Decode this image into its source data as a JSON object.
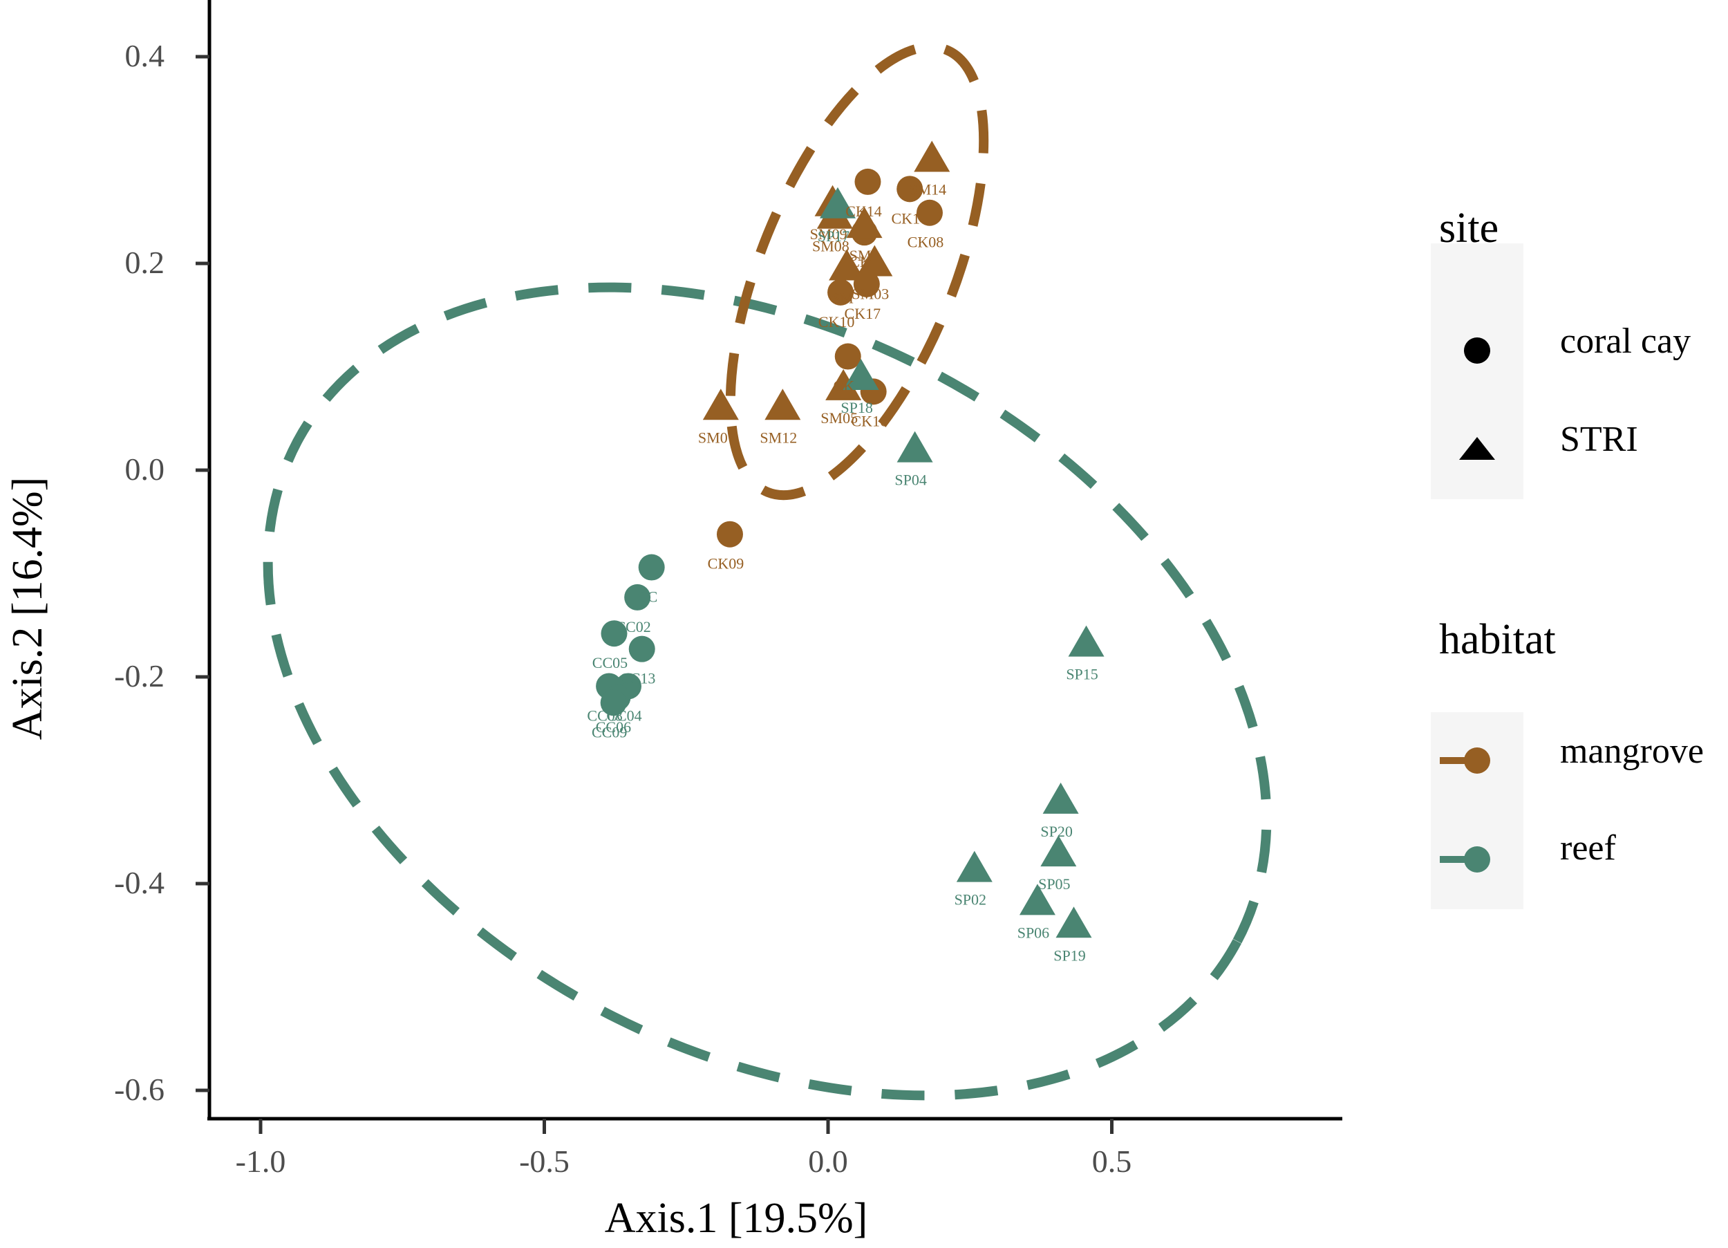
{
  "colors": {
    "mangrove": "#965F23",
    "reef": "#4A8572",
    "axis": "#000000",
    "tick_text": "#4d4d4d",
    "legend_key_bg": "#f5f5f5"
  },
  "axes": {
    "x_title": "Axis.1   [19.5%]",
    "y_title": "Axis.2   [16.4%]",
    "x_ticks": [
      "-1.0",
      "-0.5",
      "0.0",
      "0.5"
    ],
    "y_ticks": [
      "0.4",
      "0.2",
      "0.0",
      "-0.2",
      "-0.4",
      "-0.6"
    ]
  },
  "legend": {
    "site": {
      "title": "site",
      "items": [
        {
          "label": "coral cay",
          "shape": "circle"
        },
        {
          "label": "STRI",
          "shape": "triangle"
        }
      ]
    },
    "habitat": {
      "title": "habitat",
      "items": [
        {
          "label": "mangrove",
          "color": "#965F23"
        },
        {
          "label": "reef",
          "color": "#4A8572"
        }
      ]
    }
  },
  "chart_data": {
    "type": "scatter",
    "title": "",
    "xlabel": "Axis.1   [19.5%]",
    "ylabel": "Axis.2   [16.4%]",
    "xlim": [
      -1.05,
      0.89
    ],
    "ylim": [
      -0.64,
      0.45
    ],
    "x_ticks": [
      -1.0,
      -0.5,
      0.0,
      0.5
    ],
    "y_ticks": [
      -0.6,
      -0.4,
      -0.2,
      0.0,
      0.2,
      0.4
    ],
    "grid": false,
    "legend_position": "right",
    "ellipses": [
      {
        "group": "mangrove",
        "style": "dashed",
        "center": [
          0.05,
          0.19
        ],
        "approx_extent_x": [
          -0.16,
          0.26
        ],
        "approx_extent_y": [
          -0.02,
          0.4
        ]
      },
      {
        "group": "reef",
        "style": "dashed",
        "center": [
          -0.1,
          -0.2
        ],
        "approx_extent_x": [
          -1.0,
          0.82
        ],
        "approx_extent_y": [
          -0.58,
          0.17
        ]
      }
    ],
    "series": [
      {
        "name": "mangrove / coral cay",
        "habitat": "mangrove",
        "site": "coral cay",
        "shape": "circle",
        "points": [
          {
            "label": "CK14",
            "x": 0.07,
            "y": 0.279
          },
          {
            "label": "CK1?",
            "x": 0.144,
            "y": 0.272
          },
          {
            "label": "CK08",
            "x": 0.179,
            "y": 0.249
          },
          {
            "label": "CK?",
            "x": 0.064,
            "y": 0.23
          },
          {
            "label": "CK10",
            "x": 0.022,
            "y": 0.172
          },
          {
            "label": "CK17",
            "x": 0.068,
            "y": 0.18
          },
          {
            "label": "CK?",
            "x": 0.035,
            "y": 0.11
          },
          {
            "label": "CK16",
            "x": 0.08,
            "y": 0.076
          },
          {
            "label": "CK09",
            "x": -0.173,
            "y": -0.062
          }
        ]
      },
      {
        "name": "mangrove / STRI",
        "habitat": "mangrove",
        "site": "STRI",
        "shape": "triangle",
        "points": [
          {
            "label": "SM14",
            "x": 0.183,
            "y": 0.3
          },
          {
            "label": "SM09",
            "x": 0.008,
            "y": 0.257
          },
          {
            "label": "SM08",
            "x": 0.012,
            "y": 0.245
          },
          {
            "label": "SM?",
            "x": 0.064,
            "y": 0.236
          },
          {
            "label": "SM?",
            "x": 0.033,
            "y": 0.195
          },
          {
            "label": "SM03",
            "x": 0.082,
            "y": 0.199
          },
          {
            "label": "SM05",
            "x": 0.027,
            "y": 0.079
          },
          {
            "label": "SM07",
            "x": -0.189,
            "y": 0.06
          },
          {
            "label": "SM12",
            "x": -0.08,
            "y": 0.06
          }
        ]
      },
      {
        "name": "reef / coral cay",
        "habitat": "reef",
        "site": "coral cay",
        "shape": "circle",
        "points": [
          {
            "label": "CC?",
            "x": -0.311,
            "y": -0.094
          },
          {
            "label": "CC02",
            "x": -0.336,
            "y": -0.123
          },
          {
            "label": "CC05",
            "x": -0.377,
            "y": -0.158
          },
          {
            "label": "CC13",
            "x": -0.328,
            "y": -0.173
          },
          {
            "label": "CC04",
            "x": -0.352,
            "y": -0.209
          },
          {
            "label": "CC08",
            "x": -0.386,
            "y": -0.209
          },
          {
            "label": "CC06",
            "x": -0.371,
            "y": -0.22
          },
          {
            "label": "CC09",
            "x": -0.378,
            "y": -0.225
          }
        ]
      },
      {
        "name": "reef / STRI",
        "habitat": "reef",
        "site": "STRI",
        "shape": "triangle",
        "points": [
          {
            "label": "SP17",
            "x": 0.017,
            "y": 0.255
          },
          {
            "label": "SP18",
            "x": 0.058,
            "y": 0.089
          },
          {
            "label": "SP04",
            "x": 0.153,
            "y": 0.019
          },
          {
            "label": "SP15",
            "x": 0.455,
            "y": -0.169
          },
          {
            "label": "SP20",
            "x": 0.41,
            "y": -0.321
          },
          {
            "label": "SP05",
            "x": 0.406,
            "y": -0.372
          },
          {
            "label": "SP02",
            "x": 0.258,
            "y": -0.387
          },
          {
            "label": "SP06",
            "x": 0.369,
            "y": -0.419
          },
          {
            "label": "SP19",
            "x": 0.433,
            "y": -0.441
          }
        ]
      }
    ]
  }
}
